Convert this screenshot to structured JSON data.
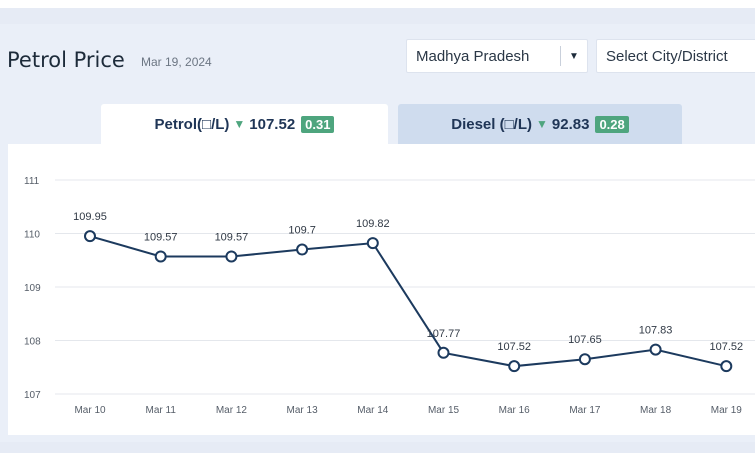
{
  "header": {
    "title": "Petrol Price",
    "date": "Mar 19, 2024"
  },
  "filters": {
    "state_label": "Madhya Pradesh",
    "city_label": "Select City/District"
  },
  "tabs": [
    {
      "label": "Petrol(□/L)",
      "price": "107.52",
      "change": "0.31",
      "direction": "down"
    },
    {
      "label": "Diesel (□/L)",
      "price": "92.83",
      "change": "0.28",
      "direction": "down"
    }
  ],
  "colors": {
    "line": "#1c3a5e",
    "down_badge": "#4ea57e",
    "active_tab": "#ffffff",
    "inactive_tab": "#cfdcee"
  },
  "chart_data": {
    "type": "line",
    "categories": [
      "Mar 10",
      "Mar 11",
      "Mar 12",
      "Mar 13",
      "Mar 14",
      "Mar 15",
      "Mar 16",
      "Mar 17",
      "Mar 18",
      "Mar 19"
    ],
    "values": [
      109.95,
      109.57,
      109.57,
      109.7,
      109.82,
      107.77,
      107.52,
      107.65,
      107.83,
      107.52
    ],
    "data_labels": [
      "109.95",
      "109.57",
      "109.57",
      "109.7",
      "109.82",
      "107.77",
      "107.52",
      "107.65",
      "107.83",
      "107.52"
    ],
    "yticks": [
      "111",
      "110",
      "109",
      "108",
      "107"
    ],
    "ylim": [
      107,
      111
    ],
    "grid": true
  }
}
